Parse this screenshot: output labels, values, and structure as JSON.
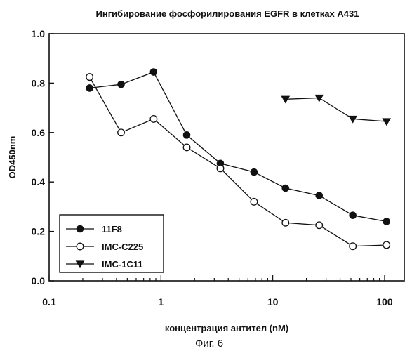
{
  "chart_data": {
    "type": "line",
    "title": "Ингибирование фосфорилирования EGFR в клетках A431",
    "xlabel": "концентрация антител (nM)",
    "ylabel": "OD450nm",
    "xscale": "log",
    "xlim": [
      0.1,
      150
    ],
    "ylim": [
      0.0,
      1.0
    ],
    "xticks": [
      0.1,
      1,
      10,
      100
    ],
    "xtick_labels": [
      "0.1",
      "1",
      "10",
      "100"
    ],
    "yticks": [
      0.0,
      0.2,
      0.4,
      0.6,
      0.8,
      1.0
    ],
    "ytick_labels": [
      "0.0",
      "0.2",
      "0.4",
      "0.6",
      "0.8",
      "1.0"
    ],
    "grid": false,
    "legend_position": "bottom-left",
    "series": [
      {
        "name": "11F8",
        "marker": "filled-circle",
        "x": [
          0.23,
          0.44,
          0.86,
          1.7,
          3.4,
          6.8,
          13,
          26,
          52,
          104
        ],
        "y": [
          0.78,
          0.795,
          0.845,
          0.59,
          0.475,
          0.44,
          0.375,
          0.345,
          0.265,
          0.24
        ]
      },
      {
        "name": "IMC-C225",
        "marker": "open-circle",
        "x": [
          0.23,
          0.44,
          0.86,
          1.7,
          3.4,
          6.8,
          13,
          26,
          52,
          104
        ],
        "y": [
          0.825,
          0.6,
          0.655,
          0.54,
          0.455,
          0.32,
          0.235,
          0.225,
          0.14,
          0.145
        ]
      },
      {
        "name": "IMC-1C11",
        "marker": "filled-triangle-down",
        "x": [
          13,
          26,
          52,
          104
        ],
        "y": [
          0.735,
          0.74,
          0.655,
          0.645
        ]
      }
    ]
  },
  "caption": "Фиг. 6"
}
